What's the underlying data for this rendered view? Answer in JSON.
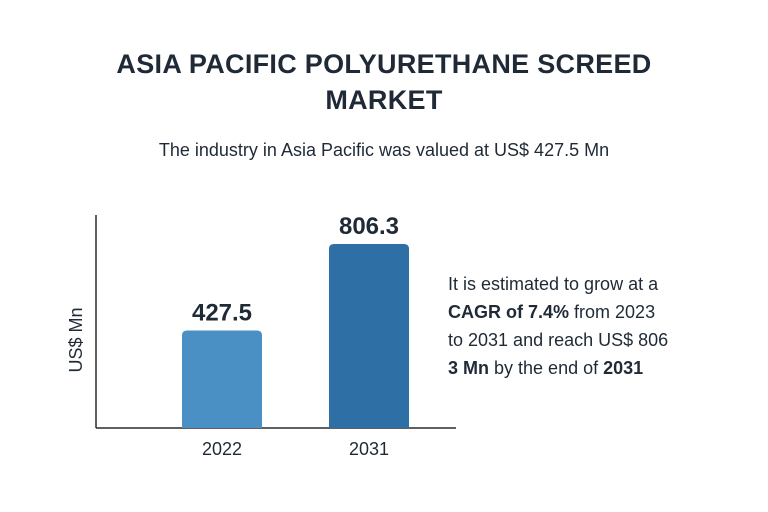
{
  "header": {
    "title_line1": "ASIA PACIFIC POLYURETHANE SCREED",
    "title_line2": "MARKET",
    "subtitle": "The industry in Asia Pacific was valued at US$ 427.5 Mn"
  },
  "chart_data": {
    "type": "bar",
    "title": "",
    "xlabel": "",
    "ylabel": "US$ Mn",
    "categories": [
      "2022",
      "2031"
    ],
    "values": [
      427.5,
      806.3
    ],
    "data_labels": [
      "427.5",
      "806.3"
    ],
    "ylim": [
      0,
      1000
    ],
    "grid": false,
    "colors": [
      "#4a90c4",
      "#2e6fa6"
    ]
  },
  "summary": {
    "line1": "It is estimated to grow at a",
    "cagr_bold": "CAGR of 7.4%",
    "line2_rest": " from 2023",
    "line3": "to 2031 and reach US$ 806",
    "line4_bold": "3 Mn",
    "line4_mid": " by the end of ",
    "line4_year": "2031"
  },
  "colors": {
    "text": "#1f2a36",
    "axis": "#2b2b2b"
  }
}
